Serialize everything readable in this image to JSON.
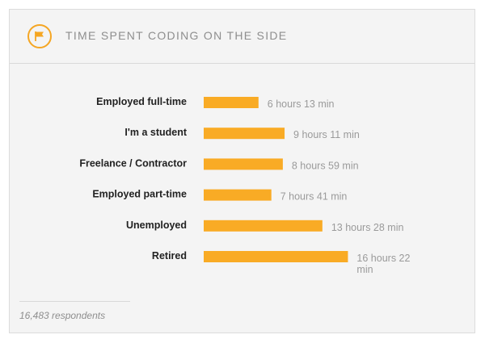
{
  "header": {
    "title": "TIME SPENT CODING ON THE SIDE",
    "icon": "flag-icon",
    "accent_color": "#f5a623"
  },
  "chart_data": {
    "type": "bar",
    "orientation": "horizontal",
    "title": "TIME SPENT CODING ON THE SIDE",
    "categories": [
      "Employed full-time",
      "I'm a student",
      "Freelance / Contractor",
      "Employed part-time",
      "Unemployed",
      "Retired"
    ],
    "values": [
      6.22,
      9.18,
      8.98,
      7.68,
      13.47,
      16.37
    ],
    "value_unit": "hours",
    "data_labels": [
      [
        "6 hours 13 min"
      ],
      [
        "9 hours 11 min"
      ],
      [
        "8 hours 59 min"
      ],
      [
        "7 hours 41 min"
      ],
      [
        "13 hours 28 min"
      ],
      [
        "16 hours 22",
        "min"
      ]
    ],
    "grid": false,
    "bar_color": "#f9ab25"
  },
  "footer": {
    "respondents": "16,483 respondents"
  }
}
